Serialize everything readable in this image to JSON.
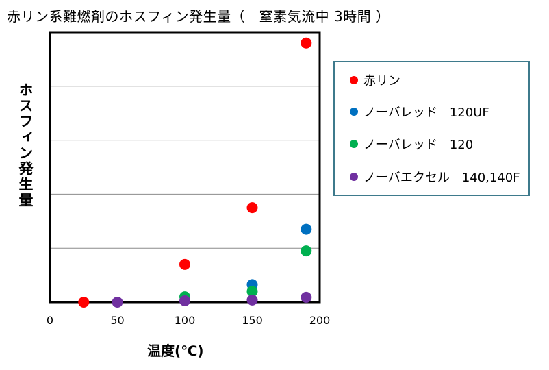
{
  "chart_data": {
    "type": "scatter",
    "title": "赤リン系難燃剤のホスフィン発生量（　窒素気流中 3時間 ）",
    "xlabel": "温度(℃)",
    "ylabel": "ホスフィン発生量",
    "xlim": [
      0,
      200
    ],
    "ylim": [
      0,
      1
    ],
    "x_ticks": [
      "0",
      "50",
      "100",
      "150",
      "200"
    ],
    "y_ticks_labeled": false,
    "grid": "horizontal",
    "legend_position": "right",
    "series": [
      {
        "name": "赤リン",
        "color": "#ff0000",
        "points": [
          {
            "x": 25,
            "y": 0.0
          },
          {
            "x": 100,
            "y": 0.14
          },
          {
            "x": 150,
            "y": 0.35
          },
          {
            "x": 190,
            "y": 0.96
          }
        ]
      },
      {
        "name": "ノーバレッド　120UF",
        "color": "#0070c0",
        "points": [
          {
            "x": 150,
            "y": 0.065
          },
          {
            "x": 190,
            "y": 0.27
          }
        ]
      },
      {
        "name": "ノーバレッド　120",
        "color": "#00b050",
        "points": [
          {
            "x": 100,
            "y": 0.02
          },
          {
            "x": 150,
            "y": 0.04
          },
          {
            "x": 190,
            "y": 0.19
          }
        ]
      },
      {
        "name": "ノーバエクセル　140,140F",
        "color": "#7030a0",
        "points": [
          {
            "x": 50,
            "y": 0.0
          },
          {
            "x": 100,
            "y": 0.005
          },
          {
            "x": 150,
            "y": 0.008
          },
          {
            "x": 190,
            "y": 0.018
          }
        ]
      }
    ]
  }
}
